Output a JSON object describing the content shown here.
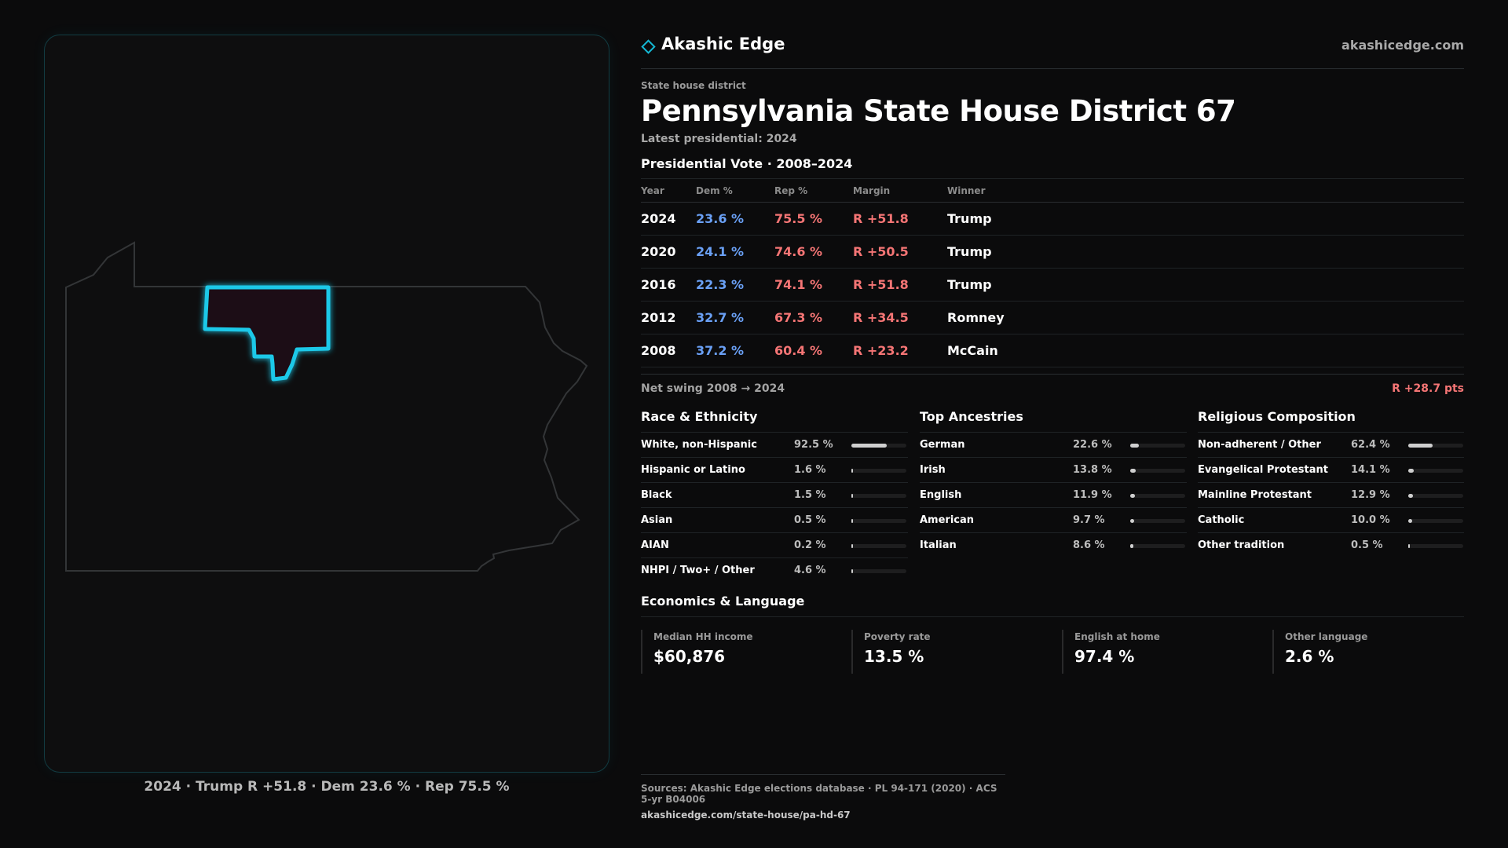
{
  "brand": {
    "name": "Akashic Edge",
    "url": "akashicedge.com",
    "icon": "diamond-icon"
  },
  "district": {
    "kicker": "State house district",
    "title": "Pennsylvania State House District 67",
    "latest": "Latest presidential: 2024"
  },
  "map": {
    "state_outline_icon": "pennsylvania-outline",
    "highlight_color": "#1ec8e8",
    "caption": "2024 · Trump R +51.8 · Dem 23.6 % · Rep 75.5 %"
  },
  "votes": {
    "title": "Presidential Vote · 2008–2024",
    "headers": {
      "year": "Year",
      "dem": "Dem %",
      "rep": "Rep %",
      "margin": "Margin",
      "winner": "Winner"
    },
    "rows": [
      {
        "year": "2024",
        "dem": "23.6 %",
        "rep": "75.5 %",
        "margin": "R +51.8",
        "winner": "Trump"
      },
      {
        "year": "2020",
        "dem": "24.1 %",
        "rep": "74.6 %",
        "margin": "R +50.5",
        "winner": "Trump"
      },
      {
        "year": "2016",
        "dem": "22.3 %",
        "rep": "74.1 %",
        "margin": "R +51.8",
        "winner": "Trump"
      },
      {
        "year": "2012",
        "dem": "32.7 %",
        "rep": "67.3 %",
        "margin": "R +34.5",
        "winner": "Romney"
      },
      {
        "year": "2008",
        "dem": "37.2 %",
        "rep": "60.4 %",
        "margin": "R +23.2",
        "winner": "McCain"
      }
    ],
    "swing_label": "Net swing 2008 → 2024",
    "swing_value": "R +28.7 pts"
  },
  "race": {
    "title": "Race & Ethnicity",
    "rows": [
      {
        "label": "White, non-Hispanic",
        "pct": "92.5 %",
        "fraction": 0.925
      },
      {
        "label": "Hispanic or Latino",
        "pct": "1.6 %",
        "fraction": 0.016
      },
      {
        "label": "Black",
        "pct": "1.5 %",
        "fraction": 0.015
      },
      {
        "label": "Asian",
        "pct": "0.5 %",
        "fraction": 0.005
      },
      {
        "label": "AIAN",
        "pct": "0.2 %",
        "fraction": 0.002
      },
      {
        "label": "NHPI / Two+ / Other",
        "pct": "4.6 %",
        "fraction": 0.046
      }
    ]
  },
  "ancestry": {
    "title": "Top Ancestries",
    "rows": [
      {
        "label": "German",
        "pct": "22.6 %",
        "fraction": 0.226
      },
      {
        "label": "Irish",
        "pct": "13.8 %",
        "fraction": 0.138
      },
      {
        "label": "English",
        "pct": "11.9 %",
        "fraction": 0.119
      },
      {
        "label": "American",
        "pct": "9.7 %",
        "fraction": 0.097
      },
      {
        "label": "Italian",
        "pct": "8.6 %",
        "fraction": 0.086
      }
    ]
  },
  "religion": {
    "title": "Religious Composition",
    "rows": [
      {
        "label": "Non-adherent / Other",
        "pct": "62.4 %",
        "fraction": 0.624
      },
      {
        "label": "Evangelical Protestant",
        "pct": "14.1 %",
        "fraction": 0.141
      },
      {
        "label": "Mainline Protestant",
        "pct": "12.9 %",
        "fraction": 0.129
      },
      {
        "label": "Catholic",
        "pct": "10.0 %",
        "fraction": 0.1
      },
      {
        "label": "Other tradition",
        "pct": "0.5 %",
        "fraction": 0.005
      }
    ]
  },
  "economics": {
    "title": "Economics & Language",
    "cards": [
      {
        "label": "Median HH income",
        "value": "$60,876"
      },
      {
        "label": "Poverty rate",
        "value": "13.5 %"
      },
      {
        "label": "English at home",
        "value": "97.4 %"
      },
      {
        "label": "Other language",
        "value": "2.6 %"
      }
    ]
  },
  "footer": {
    "sources": "Sources: Akashic Edge elections database · PL 94-171 (2020) · ACS 5-yr B04006",
    "url": "akashicedge.com/state-house/pa-hd-67"
  }
}
